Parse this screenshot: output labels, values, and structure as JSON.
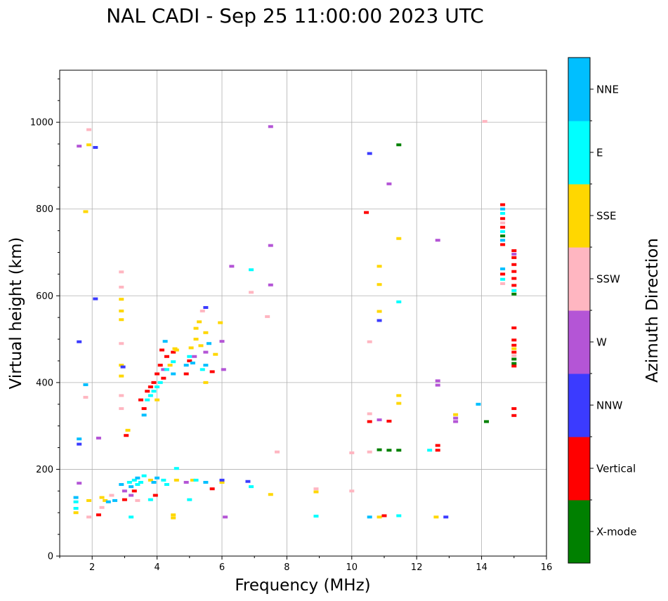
{
  "chart_data": {
    "type": "scatter",
    "title": "NAL CADI - Sep 25 11:00:00 2023 UTC",
    "xlabel": "Frequency (MHz)",
    "ylabel": "Virtual height (km)",
    "xlim": [
      1,
      16
    ],
    "ylim": [
      0,
      1120
    ],
    "xticks": [
      2,
      4,
      6,
      8,
      10,
      12,
      14,
      16
    ],
    "yticks": [
      0,
      200,
      400,
      600,
      800,
      1000
    ],
    "grid": true,
    "colorbar": {
      "label": "Azimuth Direction",
      "categories": [
        {
          "name": "X-mode",
          "color": "#008000"
        },
        {
          "name": "Vertical",
          "color": "#ff0000"
        },
        {
          "name": "NNW",
          "color": "#3b3bff"
        },
        {
          "name": "W",
          "color": "#b455d6"
        },
        {
          "name": "SSW",
          "color": "#ffb6c1"
        },
        {
          "name": "SSE",
          "color": "#ffd700"
        },
        {
          "name": "E",
          "color": "#00ffff"
        },
        {
          "name": "NNE",
          "color": "#00bfff"
        }
      ]
    },
    "points": [
      [
        1.5,
        135,
        "NNE"
      ],
      [
        1.5,
        125,
        "E"
      ],
      [
        1.5,
        110,
        "E"
      ],
      [
        1.5,
        100,
        "SSE"
      ],
      [
        1.6,
        945,
        "W"
      ],
      [
        1.6,
        270,
        "NNE"
      ],
      [
        1.6,
        258,
        "NNW"
      ],
      [
        1.6,
        168,
        "W"
      ],
      [
        1.6,
        494,
        "NNW"
      ],
      [
        1.9,
        983,
        "SSW"
      ],
      [
        1.9,
        948,
        "SSE"
      ],
      [
        1.8,
        794,
        "SSE"
      ],
      [
        1.8,
        395,
        "NNE"
      ],
      [
        1.8,
        366,
        "SSW"
      ],
      [
        1.9,
        128,
        "SSE"
      ],
      [
        1.9,
        90,
        "SSW"
      ],
      [
        2.1,
        942,
        "NNW"
      ],
      [
        2.1,
        593,
        "NNW"
      ],
      [
        2.2,
        272,
        "W"
      ],
      [
        2.2,
        95,
        "Vertical"
      ],
      [
        2.3,
        135,
        "SSE"
      ],
      [
        2.4,
        128,
        "SSE"
      ],
      [
        2.3,
        112,
        "SSW"
      ],
      [
        2.5,
        125,
        "NNE"
      ],
      [
        2.6,
        140,
        "SSW"
      ],
      [
        2.7,
        128,
        "NNE"
      ],
      [
        2.9,
        655,
        "SSW"
      ],
      [
        2.9,
        620,
        "SSW"
      ],
      [
        2.9,
        592,
        "SSE"
      ],
      [
        2.9,
        565,
        "SSE"
      ],
      [
        2.9,
        545,
        "SSE"
      ],
      [
        2.9,
        490,
        "SSW"
      ],
      [
        2.9,
        440,
        "SSE"
      ],
      [
        2.9,
        415,
        "SSE"
      ],
      [
        2.9,
        370,
        "SSW"
      ],
      [
        2.9,
        340,
        "SSW"
      ],
      [
        2.9,
        165,
        "NNE"
      ],
      [
        2.95,
        436,
        "NNW"
      ],
      [
        3.0,
        150,
        "W"
      ],
      [
        3.0,
        130,
        "Vertical"
      ],
      [
        3.05,
        278,
        "Vertical"
      ],
      [
        3.1,
        290,
        "SSE"
      ],
      [
        3.15,
        170,
        "E"
      ],
      [
        3.2,
        160,
        "NNE"
      ],
      [
        3.2,
        140,
        "W"
      ],
      [
        3.2,
        90,
        "E"
      ],
      [
        3.3,
        175,
        "E"
      ],
      [
        3.3,
        150,
        "Vertical"
      ],
      [
        3.4,
        180,
        "NNE"
      ],
      [
        3.4,
        165,
        "E"
      ],
      [
        3.4,
        128,
        "SSW"
      ],
      [
        3.5,
        360,
        "Vertical"
      ],
      [
        3.5,
        170,
        "E"
      ],
      [
        3.6,
        340,
        "Vertical"
      ],
      [
        3.6,
        325,
        "NNE"
      ],
      [
        3.6,
        185,
        "E"
      ],
      [
        3.7,
        380,
        "Vertical"
      ],
      [
        3.7,
        360,
        "E"
      ],
      [
        3.8,
        390,
        "Vertical"
      ],
      [
        3.8,
        370,
        "E"
      ],
      [
        3.8,
        175,
        "SSE"
      ],
      [
        3.8,
        130,
        "E"
      ],
      [
        3.9,
        400,
        "Vertical"
      ],
      [
        3.9,
        380,
        "E"
      ],
      [
        3.9,
        170,
        "NNE"
      ],
      [
        3.95,
        140,
        "Vertical"
      ],
      [
        4.0,
        420,
        "Vertical"
      ],
      [
        4.0,
        390,
        "E"
      ],
      [
        4.0,
        360,
        "SSE"
      ],
      [
        4.0,
        180,
        "NNE"
      ],
      [
        4.1,
        440,
        "Vertical"
      ],
      [
        4.1,
        400,
        "E"
      ],
      [
        4.15,
        475,
        "Vertical"
      ],
      [
        4.2,
        430,
        "W"
      ],
      [
        4.2,
        410,
        "Vertical"
      ],
      [
        4.2,
        175,
        "E"
      ],
      [
        4.25,
        495,
        "NNE"
      ],
      [
        4.3,
        460,
        "Vertical"
      ],
      [
        4.3,
        430,
        "E"
      ],
      [
        4.3,
        165,
        "E"
      ],
      [
        4.4,
        440,
        "SSE"
      ],
      [
        4.5,
        95,
        "SSE"
      ],
      [
        4.5,
        88,
        "SSE"
      ],
      [
        4.5,
        470,
        "Vertical"
      ],
      [
        4.5,
        448,
        "E"
      ],
      [
        4.5,
        420,
        "NNE"
      ],
      [
        4.55,
        478,
        "SSE"
      ],
      [
        4.6,
        202,
        "E"
      ],
      [
        4.6,
        175,
        "SSE"
      ],
      [
        4.6,
        475,
        "SSE"
      ],
      [
        4.9,
        170,
        "W"
      ],
      [
        4.9,
        440,
        "NNE"
      ],
      [
        4.9,
        420,
        "Vertical"
      ],
      [
        5.0,
        460,
        "E"
      ],
      [
        5.0,
        450,
        "Vertical"
      ],
      [
        5.0,
        130,
        "E"
      ],
      [
        5.05,
        480,
        "SSE"
      ],
      [
        5.1,
        175,
        "SSE"
      ],
      [
        5.1,
        445,
        "NNE"
      ],
      [
        5.15,
        460,
        "W"
      ],
      [
        5.2,
        500,
        "SSE"
      ],
      [
        5.2,
        525,
        "SSE"
      ],
      [
        5.2,
        175,
        "E"
      ],
      [
        5.3,
        540,
        "SSE"
      ],
      [
        5.35,
        485,
        "SSE"
      ],
      [
        5.4,
        565,
        "SSW"
      ],
      [
        5.4,
        430,
        "E"
      ],
      [
        5.5,
        573,
        "NNW"
      ],
      [
        5.5,
        515,
        "SSE"
      ],
      [
        5.5,
        470,
        "W"
      ],
      [
        5.5,
        440,
        "NNE"
      ],
      [
        5.5,
        170,
        "NNE"
      ],
      [
        5.5,
        400,
        "SSE"
      ],
      [
        5.6,
        490,
        "NNE"
      ],
      [
        5.7,
        425,
        "Vertical"
      ],
      [
        5.7,
        155,
        "Vertical"
      ],
      [
        5.8,
        465,
        "SSE"
      ],
      [
        5.95,
        538,
        "SSE"
      ],
      [
        6.0,
        495,
        "W"
      ],
      [
        6.0,
        170,
        "SSE"
      ],
      [
        6.0,
        175,
        "NNW"
      ],
      [
        6.1,
        90,
        "W"
      ],
      [
        6.05,
        430,
        "W"
      ],
      [
        6.3,
        668,
        "W"
      ],
      [
        6.8,
        172,
        "NNW"
      ],
      [
        6.9,
        160,
        "E"
      ],
      [
        6.9,
        660,
        "E"
      ],
      [
        6.9,
        608,
        "SSW"
      ],
      [
        7.4,
        552,
        "SSW"
      ],
      [
        7.5,
        990,
        "W"
      ],
      [
        7.5,
        716,
        "W"
      ],
      [
        7.5,
        625,
        "W"
      ],
      [
        7.5,
        142,
        "SSE"
      ],
      [
        7.7,
        240,
        "SSW"
      ],
      [
        8.9,
        155,
        "SSW"
      ],
      [
        8.9,
        148,
        "SSE"
      ],
      [
        8.9,
        92,
        "E"
      ],
      [
        10.0,
        238,
        "SSW"
      ],
      [
        10.0,
        150,
        "SSW"
      ],
      [
        10.45,
        792,
        "Vertical"
      ],
      [
        10.55,
        928,
        "NNW"
      ],
      [
        10.55,
        494,
        "SSW"
      ],
      [
        10.55,
        328,
        "SSW"
      ],
      [
        10.55,
        310,
        "Vertical"
      ],
      [
        10.55,
        240,
        "SSW"
      ],
      [
        10.55,
        90,
        "NNE"
      ],
      [
        10.85,
        668,
        "SSE"
      ],
      [
        10.85,
        626,
        "SSE"
      ],
      [
        10.85,
        564,
        "SSE"
      ],
      [
        10.85,
        543,
        "NNW"
      ],
      [
        10.85,
        314,
        "W"
      ],
      [
        10.85,
        245,
        "X-mode"
      ],
      [
        10.85,
        90,
        "SSE"
      ],
      [
        11.0,
        93,
        "Vertical"
      ],
      [
        11.15,
        858,
        "W"
      ],
      [
        11.15,
        311,
        "Vertical"
      ],
      [
        11.15,
        244,
        "X-mode"
      ],
      [
        11.45,
        948,
        "X-mode"
      ],
      [
        11.45,
        732,
        "SSE"
      ],
      [
        11.45,
        586,
        "E"
      ],
      [
        11.45,
        370,
        "SSE"
      ],
      [
        11.45,
        352,
        "SSE"
      ],
      [
        11.45,
        244,
        "X-mode"
      ],
      [
        11.45,
        93,
        "E"
      ],
      [
        12.4,
        244,
        "E"
      ],
      [
        12.65,
        728,
        "W"
      ],
      [
        12.65,
        404,
        "W"
      ],
      [
        12.65,
        394,
        "W"
      ],
      [
        12.65,
        255,
        "Vertical"
      ],
      [
        12.65,
        244,
        "Vertical"
      ],
      [
        12.6,
        90,
        "SSE"
      ],
      [
        12.9,
        90,
        "NNW"
      ],
      [
        13.2,
        326,
        "SSE"
      ],
      [
        13.2,
        318,
        "W"
      ],
      [
        13.2,
        310,
        "W"
      ],
      [
        13.9,
        350,
        "NNE"
      ],
      [
        14.1,
        1002,
        "SSW"
      ],
      [
        14.15,
        310,
        "X-mode"
      ],
      [
        14.65,
        810,
        "Vertical"
      ],
      [
        14.65,
        800,
        "NNE"
      ],
      [
        14.65,
        790,
        "E"
      ],
      [
        14.65,
        778,
        "Vertical"
      ],
      [
        14.65,
        768,
        "SSW"
      ],
      [
        14.65,
        758,
        "Vertical"
      ],
      [
        14.65,
        748,
        "E"
      ],
      [
        14.65,
        738,
        "X-mode"
      ],
      [
        14.65,
        728,
        "NNE"
      ],
      [
        14.65,
        718,
        "Vertical"
      ],
      [
        14.65,
        662,
        "NNE"
      ],
      [
        14.65,
        650,
        "Vertical"
      ],
      [
        14.65,
        638,
        "E"
      ],
      [
        14.65,
        628,
        "SSW"
      ],
      [
        15.0,
        704,
        "Vertical"
      ],
      [
        15.0,
        696,
        "W"
      ],
      [
        15.0,
        688,
        "Vertical"
      ],
      [
        15.0,
        672,
        "Vertical"
      ],
      [
        15.0,
        656,
        "Vertical"
      ],
      [
        15.0,
        640,
        "Vertical"
      ],
      [
        15.0,
        624,
        "Vertical"
      ],
      [
        15.0,
        612,
        "E"
      ],
      [
        15.0,
        604,
        "X-mode"
      ],
      [
        15.0,
        526,
        "Vertical"
      ],
      [
        15.0,
        498,
        "Vertical"
      ],
      [
        15.0,
        486,
        "Vertical"
      ],
      [
        15.0,
        478,
        "SSE"
      ],
      [
        15.0,
        470,
        "Vertical"
      ],
      [
        15.0,
        462,
        "SSW"
      ],
      [
        15.0,
        454,
        "X-mode"
      ],
      [
        15.0,
        444,
        "X-mode"
      ],
      [
        15.0,
        438,
        "Vertical"
      ],
      [
        15.0,
        340,
        "Vertical"
      ],
      [
        15.0,
        324,
        "Vertical"
      ]
    ]
  }
}
